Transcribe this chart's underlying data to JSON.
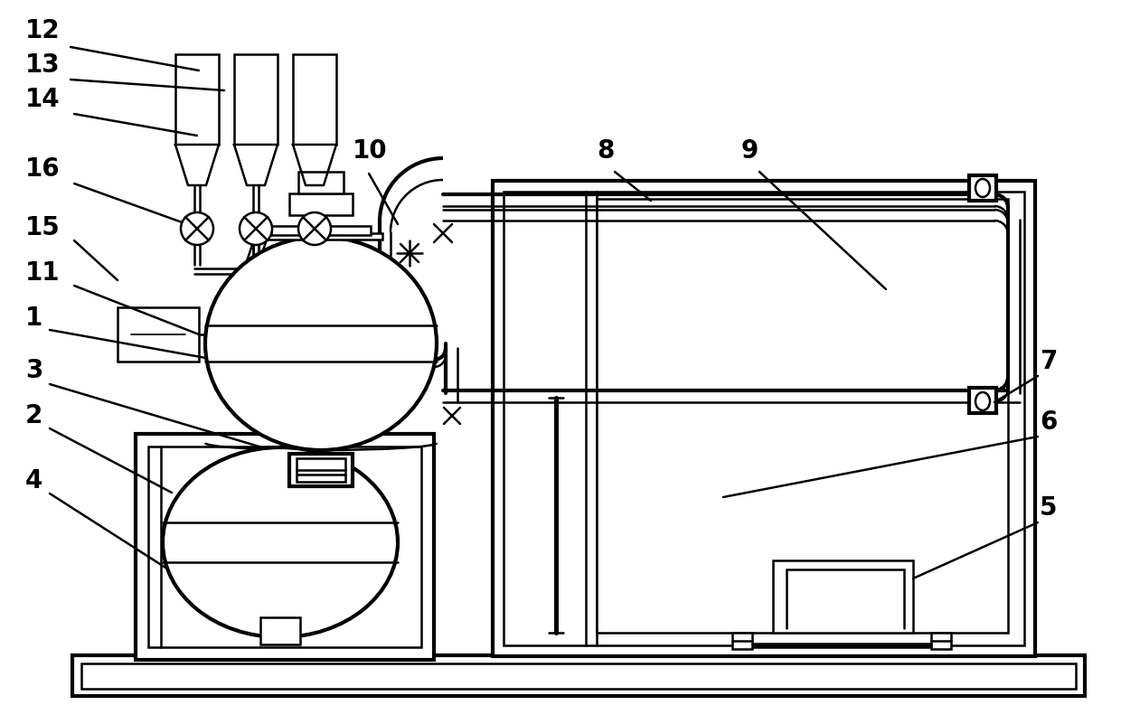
{
  "bg_color": "#ffffff",
  "lc": "#000000",
  "lw": 1.8,
  "tlw": 3.0,
  "fig_w": 12.4,
  "fig_h": 8.01
}
